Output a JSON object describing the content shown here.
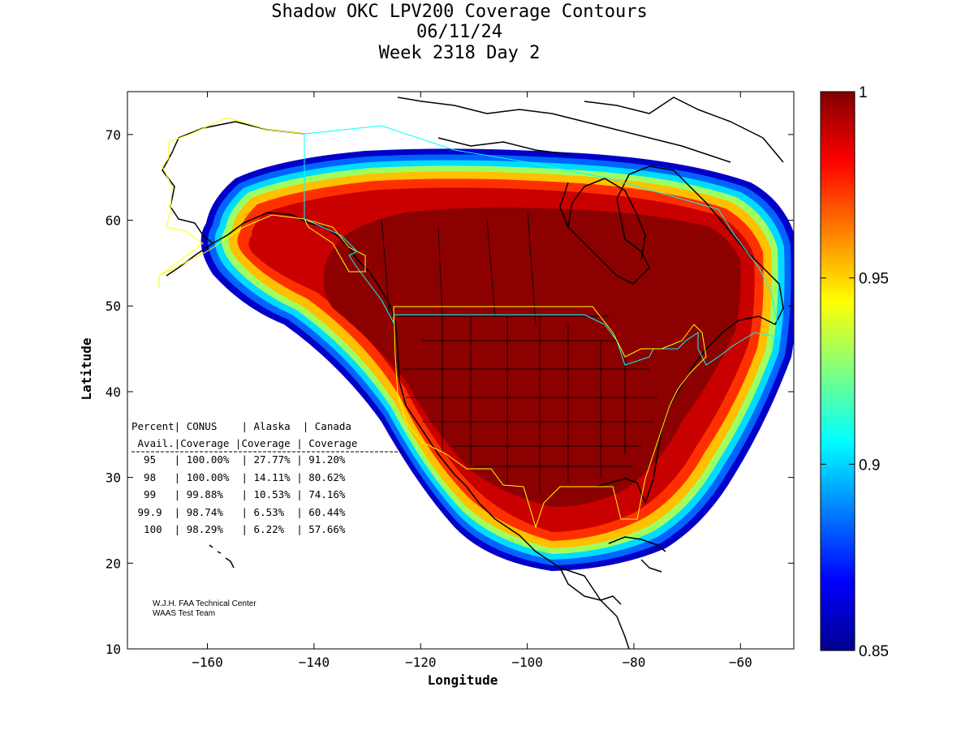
{
  "title_lines": [
    "Shadow OKC LPV200 Coverage Contours",
    "06/11/24",
    "Week 2318 Day 2"
  ],
  "chart_data": {
    "type": "heatmap",
    "xlabel": "Longitude",
    "ylabel": "Latitude",
    "xlim": [
      -175,
      -50
    ],
    "ylim": [
      10,
      75
    ],
    "xticks": [
      -160,
      -140,
      -120,
      -100,
      -80,
      -60
    ],
    "yticks": [
      10,
      20,
      30,
      40,
      50,
      60,
      70
    ],
    "colorbar": {
      "range": [
        0.85,
        1
      ],
      "ticks": [
        "1",
        "0.95",
        "0.9",
        "0.85"
      ],
      "tick_values": [
        1,
        0.95,
        0.9,
        0.85
      ],
      "colormap": "jet"
    },
    "coverage_table": {
      "header1": [
        "Percent",
        "CONUS",
        "Alaska",
        "Canada"
      ],
      "header2": [
        "Avail.",
        "Coverage",
        "Coverage",
        "Coverage"
      ],
      "rows": [
        [
          "95",
          "100.00%",
          "27.77%",
          "91.20%"
        ],
        [
          "98",
          "100.00%",
          "14.11%",
          "80.62%"
        ],
        [
          "99",
          "99.88%",
          "10.53%",
          "74.16%"
        ],
        [
          "99.9",
          "98.74%",
          "6.53%",
          "60.44%"
        ],
        [
          "100",
          "98.29%",
          "6.22%",
          "57.66%"
        ]
      ]
    },
    "credit_lines": [
      "W.J.H. FAA Technical Center",
      "WAAS Test Team"
    ]
  }
}
